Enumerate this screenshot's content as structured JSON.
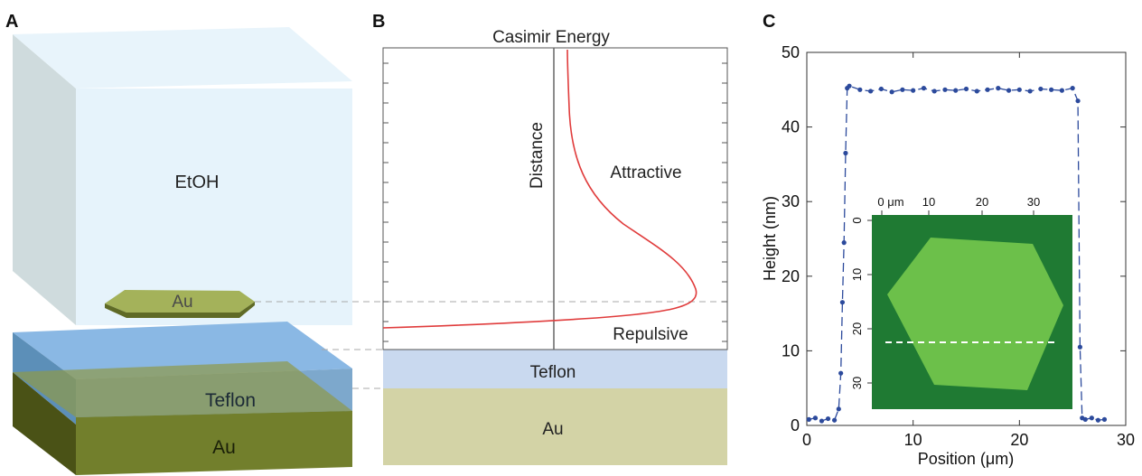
{
  "panels": {
    "a": {
      "letter": "A",
      "labels": {
        "solvent": "EtOH",
        "flake": "Au",
        "dielectric": "Teflon",
        "substrate": "Au"
      },
      "colors": {
        "solvent": "#e6f3fb",
        "flake": "#9aab4e",
        "dielectric": "#7fb3e6",
        "substrate": "#6b7a2a"
      }
    },
    "b": {
      "letter": "B",
      "title": "Casimir Energy",
      "axis_label": "Distance",
      "regions": {
        "attractive": "Attractive",
        "repulsive": "Repulsive"
      },
      "layers": {
        "dielectric": "Teflon",
        "substrate": "Au"
      },
      "curve_color": "#e03c3c",
      "colors": {
        "dielectric": "#c9d9ef",
        "substrate": "#d3d3a6"
      }
    },
    "c": {
      "letter": "C",
      "chart_data": {
        "type": "line",
        "xlabel": "Position (μm)",
        "ylabel": "Height (nm)",
        "xlim": [
          0,
          30
        ],
        "ylim": [
          0,
          50
        ],
        "xticks": [
          0,
          10,
          20,
          30
        ],
        "yticks": [
          0,
          10,
          20,
          30,
          40,
          50
        ],
        "series": [
          {
            "color": "#2c4a9c",
            "x": [
              0.2,
              0.8,
              1.4,
              2.0,
              2.6,
              3.0,
              3.2,
              3.35,
              3.5,
              3.65,
              3.8,
              4.0,
              5,
              6,
              7,
              8,
              9,
              10,
              11,
              12,
              13,
              14,
              15,
              16,
              17,
              18,
              19,
              20,
              21,
              22,
              23,
              24,
              25,
              25.5,
              25.7,
              25.9,
              26.2,
              26.8,
              27.4,
              28.0
            ],
            "y": [
              0.8,
              1.0,
              0.6,
              0.9,
              0.7,
              2.2,
              7.0,
              16.5,
              24.5,
              36.5,
              45.2,
              45.5,
              45.0,
              44.8,
              45.1,
              44.7,
              45.0,
              44.9,
              45.2,
              44.8,
              45.0,
              44.9,
              45.1,
              44.8,
              45.0,
              45.2,
              44.9,
              45.0,
              44.8,
              45.1,
              45.0,
              44.9,
              45.2,
              43.5,
              10.5,
              1.0,
              0.8,
              1.0,
              0.7,
              0.8
            ]
          }
        ]
      },
      "inset": {
        "top_ticks": [
          "0 μm",
          "10",
          "20",
          "30"
        ],
        "left_ticks": [
          "0",
          "10",
          "20",
          "30"
        ],
        "colors": {
          "background": "#1f7a33",
          "flake": "#6cc04a",
          "line": "#ffffff"
        }
      }
    }
  }
}
